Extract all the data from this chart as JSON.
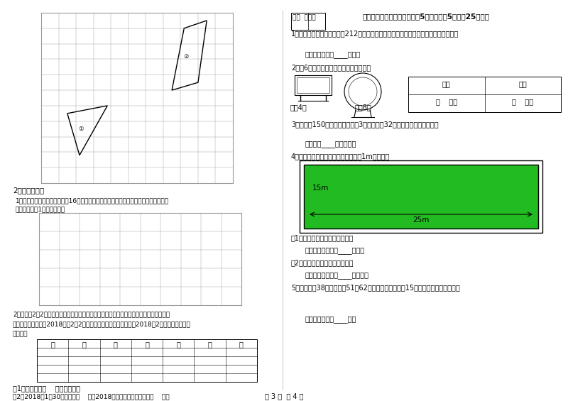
{
  "page_bg": "#ffffff",
  "page_width": 8.0,
  "page_height": 5.65,
  "dpi": 100,
  "score_box_text": "得分  评卷人",
  "section_title": "六、活用知识，解决问题（共5小题，每题5分，內25分）。",
  "q1_text": "1．用一根铁丝做一个边长为212厘米的正方形框架，正好用完。这根铁丝长多少厘米？",
  "q1_ans": "答：这根铁丝长____厘米。",
  "q2_text": "2．有6位客人用餐，可以怎样安排桌子？",
  "q2_table_h1": "圆桌",
  "q2_table_h2": "方桌",
  "q2_table_r1": "（    ）张",
  "q2_table_r2": "（    ）张",
  "q2_caption1": "每桌4人",
  "q2_caption2": "每桌8人",
  "q3_text": "3．一本书150页，冬冬已经看了3天，每天看32页，还剩多少页没有看？",
  "q3_ans": "答：还剑____页没有看。",
  "q4_text": "4．在一块长方形的花坛四周，铺上到1m的小路。",
  "q4_green_label_w": "15m",
  "q4_green_label_l": "25m",
  "q4_sub1": "（1）花坛的面积是多少平方米？",
  "q4_ans1": "答：花坛的面积是____平方米",
  "q4_sub2": "（2）小路的面积是多少平方米？",
  "q4_ans2": "答：小路的面积是____平方米。",
  "q5_text": "5．一个排瑤38元，一个篹51兢62元，如果每种都各争15个，一共需要花多少錢？",
  "q5_ans": "答：一共需要花____元。",
  "left_q2_title": "2．动手操作。",
  "left_q2_sub1": "1．在下面方格纸上画出面积是16平方厘米的长方形和正方形，标出相应的长、宽或边长",
  "left_q2_sub2": "（每一小格为1平方厘米）。",
  "left_q3_line1": "2．每年的2月2日是世界湿地日。在这一天，世界各国都举行不同形式的活动来宣传保护自",
  "left_q3_line2": "然资源和生态环境。2018年的2月2日是星期五，请你根据信息制作2018年2月份的月历，并回",
  "left_q3_line3": "答问题。",
  "calendar_headers": [
    "日",
    "一",
    "二",
    "三",
    "四",
    "五",
    "六"
  ],
  "left_q3_q1": "（1）这个月有（    ）个星期六。",
  "left_q3_q2": "（2）2018年1月30日是星期（    ），2018年的三八妇女节是星期（    ）。",
  "footer": "第 3 页  共 4 页",
  "green_color": "#22bb22",
  "grid_color": "#bbbbbb",
  "border_color": "#000000",
  "text_color": "#000000"
}
